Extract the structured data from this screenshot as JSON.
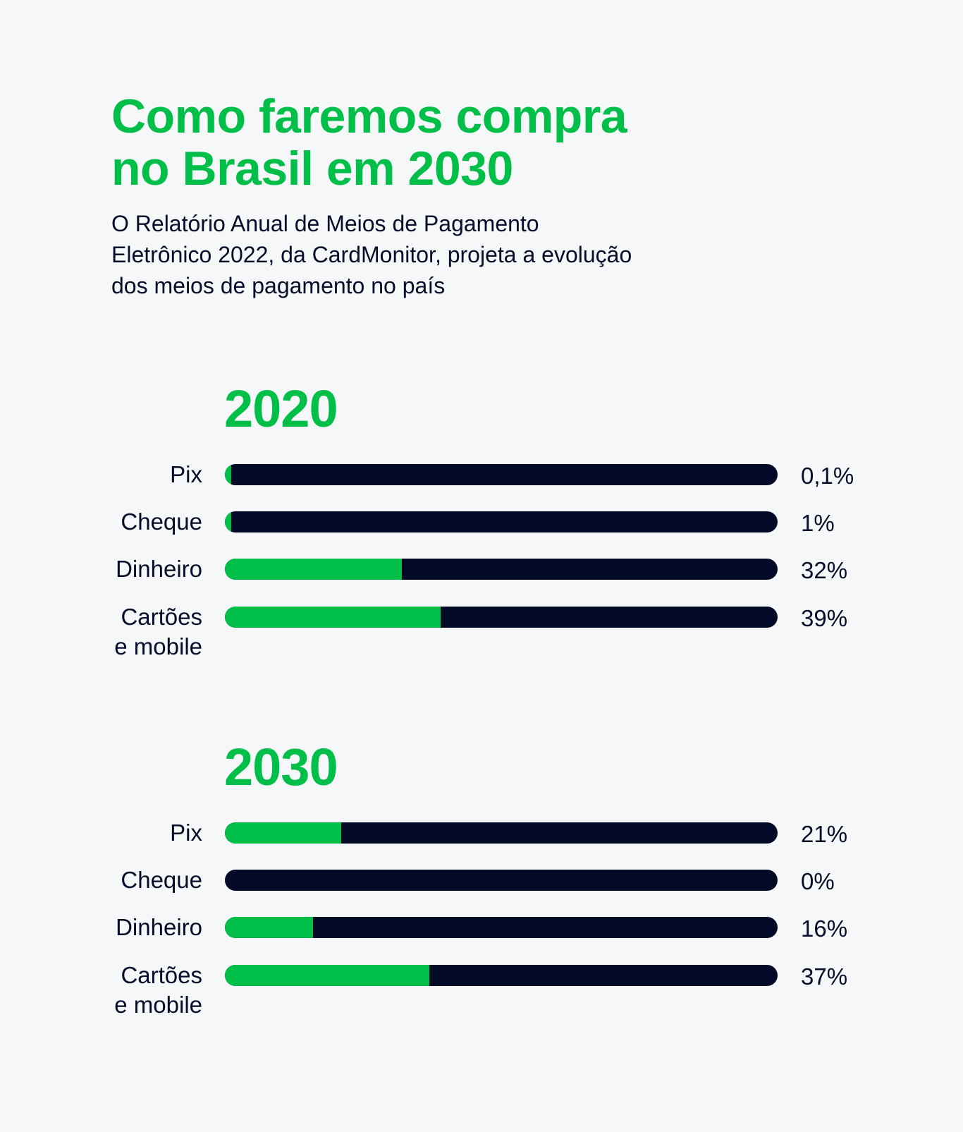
{
  "header": {
    "title_lines": [
      "Como faremos compra",
      "no Brasil em 2030"
    ],
    "subtitle_lines": [
      "O Relatório Anual de Meios de Pagamento",
      "Eletrônico 2022, da CardMonitor, projeta a evolução",
      "dos meios de pagamento no país"
    ]
  },
  "colors": {
    "accent": "#00bf49",
    "bar_track": "#020a28",
    "text": "#050d2a",
    "background": "#f5f7f9"
  },
  "chart_data": [
    {
      "type": "bar",
      "orientation": "horizontal",
      "title": "2020",
      "categories": [
        [
          "Pix"
        ],
        [
          "Cheque"
        ],
        [
          "Dinheiro"
        ],
        [
          "Cartões",
          "e mobile"
        ]
      ],
      "values": [
        0.1,
        1,
        32,
        39
      ],
      "value_labels": [
        "0,1%",
        "1%",
        "32%",
        "39%"
      ],
      "xlim": [
        0,
        100
      ],
      "grid": false,
      "legend": "none"
    },
    {
      "type": "bar",
      "orientation": "horizontal",
      "title": "2030",
      "categories": [
        [
          "Pix"
        ],
        [
          "Cheque"
        ],
        [
          "Dinheiro"
        ],
        [
          "Cartões",
          "e mobile"
        ]
      ],
      "values": [
        21,
        0,
        16,
        37
      ],
      "value_labels": [
        "21%",
        "0%",
        "16%",
        "37%"
      ],
      "xlim": [
        0,
        100
      ],
      "grid": false,
      "legend": "none"
    }
  ]
}
